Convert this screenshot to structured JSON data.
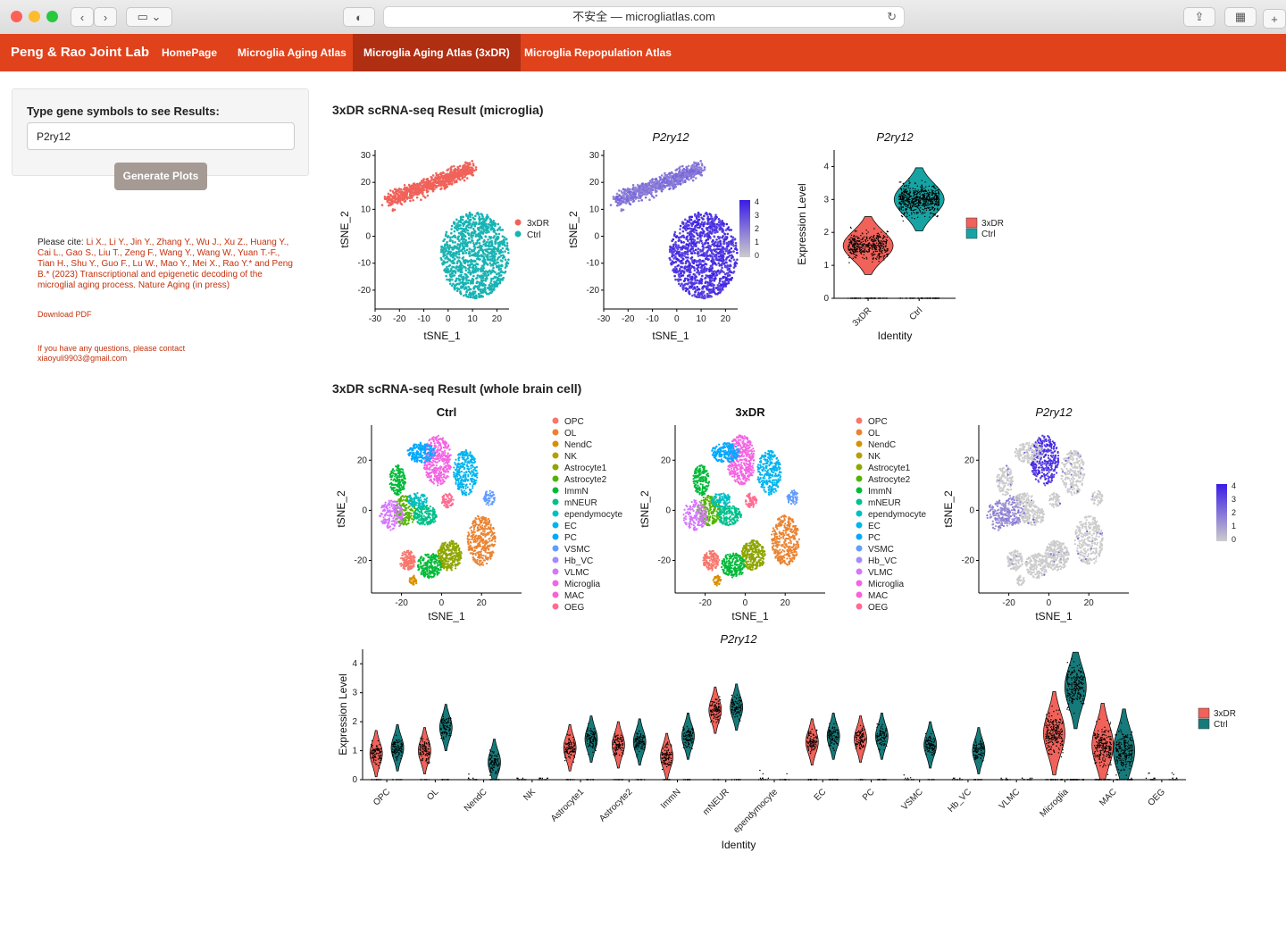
{
  "browser": {
    "url_text": "不安全 — microgliatlas.com"
  },
  "navbar": {
    "brand": "Peng & Rao Joint Lab",
    "items": [
      {
        "label": "HomePage"
      },
      {
        "label": "Microglia Aging Atlas"
      },
      {
        "label": "Microglia Aging Atlas (3xDR)"
      },
      {
        "label": "Microglia Repopulation Atlas"
      }
    ],
    "active_index": 2,
    "color": "#e0421c"
  },
  "sidebar": {
    "prompt": "Type gene symbols to see Results:",
    "gene_value": "P2ry12",
    "button_label": "Generate Plots",
    "cite_prefix": "Please cite: ",
    "citation": "Li X., Li Y., Jin Y., Zhang Y., Wu J., Xu Z., Huang Y., Cai L., Gao S., Liu T., Zeng F., Wang Y., Wang W., Yuan T.-F., Tian H., Shu Y., Guo F., Lu W., Mao Y., Mei X., Rao Y.* and Peng B.* (2023) Transcriptional and epigenetic decoding of the microglial aging process. Nature Aging (in press)",
    "download_label": "Download PDF",
    "contact": "If you have any questions, please contact xiaoyuli9903@gmail.com"
  },
  "sections": {
    "microglia_title": "3xDR scRNA-seq Result (microglia)",
    "brain_title": "3xDR scRNA-seq Result (whole brain cell)"
  },
  "chart_data": [
    {
      "type": "scatter",
      "title": "",
      "xlabel": "tSNE_1",
      "ylabel": "tSNE_2",
      "xlim": [
        -30,
        25
      ],
      "ylim": [
        -27,
        32
      ],
      "xticks": [
        -30,
        -20,
        -10,
        0,
        10,
        20
      ],
      "yticks": [
        -20,
        -10,
        0,
        10,
        20,
        30
      ],
      "series": [
        {
          "name": "3xDR",
          "color": "#f0625a"
        },
        {
          "name": "Ctrl",
          "color": "#18b3b3"
        }
      ],
      "legend": "right"
    },
    {
      "type": "scatter",
      "title": "P2ry12",
      "xlabel": "tSNE_1",
      "ylabel": "tSNE_2",
      "xlim": [
        -30,
        25
      ],
      "ylim": [
        -27,
        32
      ],
      "xticks": [
        -30,
        -20,
        -10,
        0,
        10,
        20
      ],
      "yticks": [
        -20,
        -10,
        0,
        10,
        20,
        30
      ],
      "colorbar": {
        "ticks": [
          0,
          1,
          2,
          3,
          4
        ],
        "low": "#cccccc",
        "high": "#3a1be6"
      },
      "legend": "right"
    },
    {
      "type": "violin",
      "title": "P2ry12",
      "xlabel": "Identity",
      "ylabel": "Expression Level",
      "ylim": [
        0,
        4.5
      ],
      "yticks": [
        0,
        1,
        2,
        3,
        4
      ],
      "categories": [
        "3xDR",
        "Ctrl"
      ],
      "series": [
        {
          "name": "3xDR",
          "color": "#f0625a"
        },
        {
          "name": "Ctrl",
          "color": "#18a3a3"
        }
      ],
      "legend": "right"
    },
    {
      "type": "scatter",
      "title": "Ctrl",
      "xlabel": "tSNE_1",
      "ylabel": "tSNE_2",
      "xticks": [
        -20,
        0,
        20
      ],
      "yticks": [
        -20,
        0,
        20
      ],
      "legend_entries": [
        {
          "name": "OPC",
          "color": "#f8766d"
        },
        {
          "name": "OL",
          "color": "#ea8331"
        },
        {
          "name": "NendC",
          "color": "#d89000"
        },
        {
          "name": "NK",
          "color": "#b79f00"
        },
        {
          "name": "Astrocyte1",
          "color": "#8fa600"
        },
        {
          "name": "Astrocyte2",
          "color": "#53b400"
        },
        {
          "name": "ImmN",
          "color": "#00ba38"
        },
        {
          "name": "mNEUR",
          "color": "#00c08b"
        },
        {
          "name": "ependymocyte",
          "color": "#00bfc4"
        },
        {
          "name": "EC",
          "color": "#00b4f0"
        },
        {
          "name": "PC",
          "color": "#00a9ff"
        },
        {
          "name": "VSMC",
          "color": "#619cff"
        },
        {
          "name": "Hb_VC",
          "color": "#a58aff"
        },
        {
          "name": "VLMC",
          "color": "#d575fe"
        },
        {
          "name": "Microglia",
          "color": "#f564e3"
        },
        {
          "name": "MAC",
          "color": "#fb61d7"
        },
        {
          "name": "OEG",
          "color": "#ff6c91"
        }
      ]
    },
    {
      "type": "scatter",
      "title": "3xDR",
      "xlabel": "tSNE_1",
      "ylabel": "tSNE_2",
      "xticks": [
        -20,
        0,
        20
      ],
      "yticks": [
        -20,
        0,
        20
      ]
    },
    {
      "type": "scatter",
      "title": "P2ry12",
      "xlabel": "tSNE_1",
      "ylabel": "tSNE_2",
      "xticks": [
        -20,
        0,
        20
      ],
      "yticks": [
        -20,
        0,
        20
      ],
      "colorbar": {
        "ticks": [
          0,
          1,
          2,
          3,
          4
        ],
        "low": "#cccccc",
        "high": "#3a1be6"
      }
    },
    {
      "type": "violin",
      "title": "P2ry12",
      "xlabel": "Identity",
      "ylabel": "Expression Level",
      "ylim": [
        0,
        4.5
      ],
      "yticks": [
        0,
        1,
        2,
        3,
        4
      ],
      "categories": [
        "OPC",
        "OL",
        "NendC",
        "NK",
        "Astrocyte1",
        "Astrocyte2",
        "ImmN",
        "mNEUR",
        "ependymocyte",
        "EC",
        "PC",
        "VSMC",
        "Hb_VC",
        "VLMC",
        "Microglia",
        "MAC",
        "OEG"
      ],
      "series": [
        {
          "name": "3xDR",
          "color": "#f0625a",
          "median": [
            0.9,
            1.0,
            0.0,
            0.0,
            1.1,
            1.2,
            0.8,
            2.4,
            0.0,
            1.3,
            1.4,
            0.0,
            0.0,
            0.0,
            1.6,
            1.2,
            0.0
          ]
        },
        {
          "name": "Ctrl",
          "color": "#177a7a",
          "median": [
            1.1,
            1.8,
            0.6,
            0.0,
            1.4,
            1.3,
            1.5,
            2.5,
            0.0,
            1.5,
            1.5,
            1.2,
            1.0,
            0.0,
            3.2,
            1.0,
            0.0
          ]
        }
      ],
      "legend": "right"
    }
  ]
}
